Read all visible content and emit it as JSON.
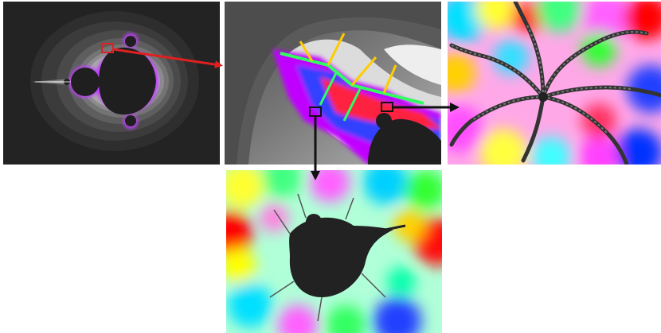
{
  "figure": {
    "panels": [
      {
        "id": "overview",
        "zoom_level": 1
      },
      {
        "id": "zoom-1",
        "zoom_level": 2
      },
      {
        "id": "zoom-2a",
        "zoom_level": 3
      },
      {
        "id": "zoom-2b",
        "zoom_level": 3
      }
    ],
    "colors": {
      "background": "#222222",
      "arrow_red": "#e02020",
      "arrow_black": "#111111",
      "box_red": "#e02020",
      "box_black": "#111111",
      "fractal_gradient": [
        "#ff0000",
        "#ff8800",
        "#ffff00",
        "#00ff66",
        "#00ccff",
        "#0044ff",
        "#cc00ff",
        "#ff66cc"
      ]
    }
  }
}
